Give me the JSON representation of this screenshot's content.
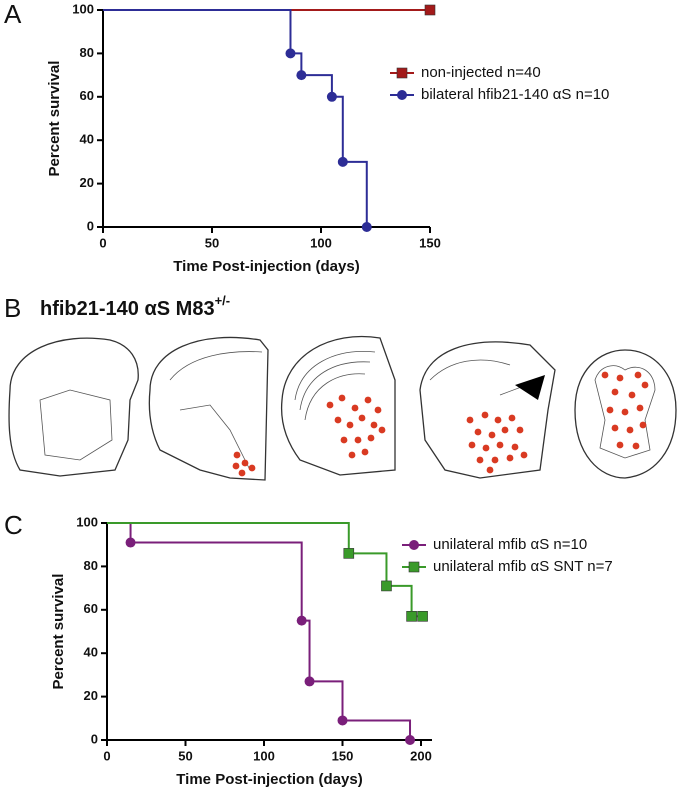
{
  "panels": {
    "a": "A",
    "b": "B",
    "c": "C"
  },
  "panel_b_title": {
    "text": "hfib21-140 αS M83",
    "superscript": "+/-"
  },
  "chart_data": [
    {
      "type": "step",
      "xlabel": "Time Post-injection (days)",
      "ylabel": "Percent survival",
      "xlim": [
        0,
        150
      ],
      "xticks": [
        0,
        50,
        100,
        150
      ],
      "ylim": [
        0,
        100
      ],
      "yticks": [
        0,
        20,
        40,
        60,
        80,
        100
      ],
      "legend": "right",
      "series": [
        {
          "name": "non-injected n=40",
          "color": "#a31a1a",
          "marker": "square",
          "x": [
            0,
            150
          ],
          "values": [
            100,
            100
          ]
        },
        {
          "name": "bilateral hfib21-140 αS n=10",
          "color": "#2d2d96",
          "marker": "circle",
          "x": [
            0,
            86,
            91,
            105,
            110,
            121
          ],
          "values": [
            100,
            80,
            70,
            60,
            30,
            0
          ]
        }
      ]
    },
    {
      "type": "step",
      "xlabel": "Time Post-injection (days)",
      "ylabel": "Percent survival",
      "xlim": [
        0,
        207
      ],
      "xticks": [
        0,
        50,
        100,
        150,
        200
      ],
      "ylim": [
        0,
        100
      ],
      "yticks": [
        0,
        20,
        40,
        60,
        80,
        100
      ],
      "legend": "right",
      "series": [
        {
          "name": "unilateral mfib αS n=10",
          "color": "#7a1f7a",
          "marker": "circle",
          "x": [
            0,
            15,
            124,
            129,
            150,
            193
          ],
          "values": [
            100,
            91,
            55,
            27,
            9,
            0
          ]
        },
        {
          "name": "unilateral mfib αS SNT n=7",
          "color": "#3a9a2a",
          "marker": "square",
          "x": [
            0,
            154,
            178,
            194,
            201
          ],
          "values": [
            100,
            86,
            71,
            57,
            57
          ]
        }
      ]
    }
  ]
}
